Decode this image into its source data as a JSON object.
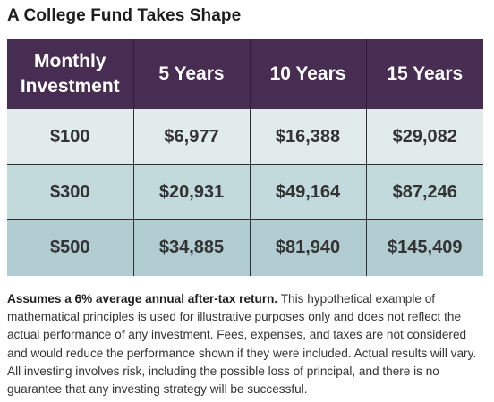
{
  "title": "A College Fund Takes Shape",
  "chart_data": {
    "type": "table",
    "title": "A College Fund Takes Shape",
    "columns": [
      "Monthly Investment",
      "5 Years",
      "10 Years",
      "15 Years"
    ],
    "header_lines": [
      [
        "Monthly",
        "Investment"
      ],
      [
        "5 Years"
      ],
      [
        "10 Years"
      ],
      [
        "15 Years"
      ]
    ],
    "rows": [
      [
        "$100",
        "$6,977",
        "$16,388",
        "$29,082"
      ],
      [
        "$300",
        "$20,931",
        "$49,164",
        "$87,246"
      ],
      [
        "$500",
        "$34,885",
        "$81,940",
        "$145,409"
      ]
    ],
    "row_colors": [
      "#e1ebeb",
      "#c3dadd",
      "#b1cdd2"
    ],
    "header_color": "#482d53"
  },
  "footnote": {
    "bold": "Assumes a 6% average annual after-tax return.",
    "text": " This hypothetical example of mathematical principles is used for illustrative purposes only and does not reflect the actual performance of any investment. Fees, expenses, and taxes are not considered and would reduce the performance shown if they were included. Actual results will vary. All investing involves risk, including the possible loss of principal, and there is no guarantee that any investing strategy will be successful."
  }
}
